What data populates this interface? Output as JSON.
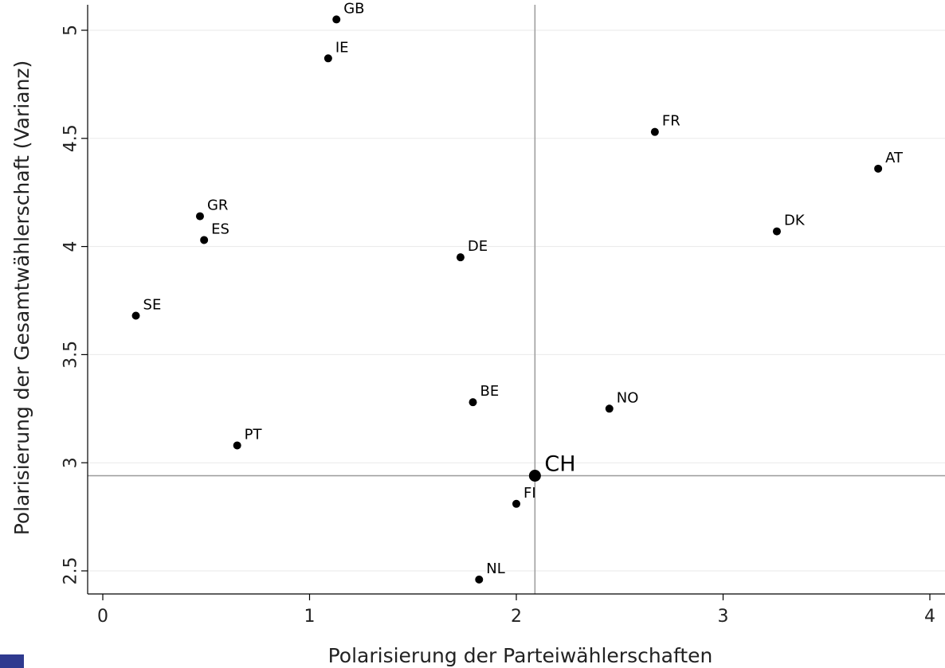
{
  "chart_data": {
    "type": "scatter",
    "title": "",
    "xlabel": "Polarisierung der Parteiwählerschaften",
    "ylabel": "Polarisierung der Gesamtwählerschaft (Varianz)",
    "xlim": [
      -0.06,
      4.06
    ],
    "ylim": [
      2.4,
      5.12
    ],
    "xticks": [
      0,
      1,
      2,
      3,
      4
    ],
    "xtick_labels": [
      "0",
      "1",
      "2",
      "3",
      "4"
    ],
    "yticks": [
      2.5,
      3,
      3.5,
      4,
      4.5,
      5
    ],
    "ytick_labels": [
      "2.5",
      "3",
      "3.5",
      "4",
      "4.5",
      "5"
    ],
    "grid": "horizontal",
    "reference_lines": {
      "x": 2.09,
      "y": 2.94
    },
    "points": [
      {
        "label": "GB",
        "x": 1.13,
        "y": 5.05
      },
      {
        "label": "IE",
        "x": 1.09,
        "y": 4.87
      },
      {
        "label": "FR",
        "x": 2.67,
        "y": 4.53
      },
      {
        "label": "AT",
        "x": 3.75,
        "y": 4.36
      },
      {
        "label": "GR",
        "x": 0.47,
        "y": 4.14
      },
      {
        "label": "ES",
        "x": 0.49,
        "y": 4.03
      },
      {
        "label": "DK",
        "x": 3.26,
        "y": 4.07
      },
      {
        "label": "DE",
        "x": 1.73,
        "y": 3.95
      },
      {
        "label": "SE",
        "x": 0.16,
        "y": 3.68
      },
      {
        "label": "BE",
        "x": 1.79,
        "y": 3.28
      },
      {
        "label": "NO",
        "x": 2.45,
        "y": 3.25
      },
      {
        "label": "PT",
        "x": 0.65,
        "y": 3.08
      },
      {
        "label": "CH",
        "x": 2.09,
        "y": 2.94,
        "highlight": true
      },
      {
        "label": "FI",
        "x": 2.0,
        "y": 2.81
      },
      {
        "label": "NL",
        "x": 1.82,
        "y": 2.46
      }
    ]
  }
}
